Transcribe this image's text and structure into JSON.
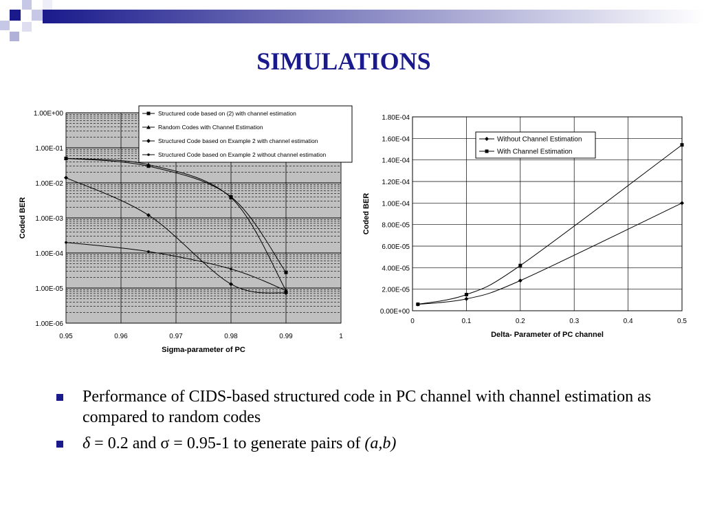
{
  "slide": {
    "title": "SIMULATIONS",
    "bullets": [
      {
        "text": "Performance of CIDS-based structured code in PC channel with channel estimation as compared to random codes"
      },
      {
        "p1": "δ",
        "p2": " = 0.2 and σ = 0.95-1 to generate pairs of ",
        "p3": "(a,b)"
      }
    ]
  },
  "colors": {
    "title": "#1a1a8c",
    "bullet": "#1a1a8c",
    "plot_bg": "#c0c0c0"
  },
  "chart_data": [
    {
      "type": "line",
      "xlabel": "Sigma-parameter of PC",
      "ylabel": "Coded BER",
      "y_scale": "log",
      "xlim": [
        0.95,
        1.0
      ],
      "ylim": [
        1e-06,
        1
      ],
      "x_ticks": [
        "0.95",
        "0.96",
        "0.97",
        "0.98",
        "0.99",
        "1"
      ],
      "y_ticks": [
        "1.00E+00",
        "1.00E-01",
        "1.00E-02",
        "1.00E-03",
        "1.00E-04",
        "1.00E-05",
        "1.00E-06"
      ],
      "grid": true,
      "legend_position": "top-right",
      "series": [
        {
          "name": "Structured code based on (2) with channel estimation",
          "marker": "square",
          "x": [
            0.95,
            0.965,
            0.98,
            0.99
          ],
          "y": [
            0.05,
            0.03,
            0.004,
            2.8e-05
          ]
        },
        {
          "name": "Random Codes with Channel Estimation",
          "marker": "triangle",
          "x": [
            0.95,
            0.965,
            0.98,
            0.99
          ],
          "y": [
            0.05,
            0.033,
            0.0038,
            8.5e-06
          ]
        },
        {
          "name": "Structured Code based on Example 2 with channel estimation",
          "marker": "diamond",
          "x": [
            0.95,
            0.965,
            0.98,
            0.99
          ],
          "y": [
            0.014,
            0.0012,
            1.3e-05,
            7.2e-06
          ]
        },
        {
          "name": "Structured Code based on Example 2 without channel estimation",
          "marker": "star",
          "x": [
            0.95,
            0.965,
            0.98,
            0.99
          ],
          "y": [
            0.0002,
            0.00011,
            3.5e-05,
            8.5e-06
          ]
        }
      ]
    },
    {
      "type": "line",
      "xlabel": "Delta- Parameter of PC channel",
      "ylabel": "Coded BER",
      "xlim": [
        0,
        0.5
      ],
      "ylim": [
        0,
        0.00018
      ],
      "x_ticks": [
        "0",
        "0.1",
        "0.2",
        "0.3",
        "0.4",
        "0.5"
      ],
      "y_ticks": [
        "0.00E+00",
        "2.00E-05",
        "4.00E-05",
        "6.00E-05",
        "8.00E-05",
        "1.00E-04",
        "1.20E-04",
        "1.40E-04",
        "1.60E-04",
        "1.80E-04"
      ],
      "grid": true,
      "legend_position": "top-center",
      "series": [
        {
          "name": "Without Channel Estimation",
          "marker": "diamond",
          "x": [
            0.01,
            0.1,
            0.2,
            0.5
          ],
          "y": [
            6e-06,
            1.1e-05,
            2.8e-05,
            0.0001
          ]
        },
        {
          "name": "With Channel Estimation",
          "marker": "square",
          "x": [
            0.01,
            0.1,
            0.2,
            0.5
          ],
          "y": [
            6e-06,
            1.5e-05,
            4.2e-05,
            0.000154
          ]
        }
      ]
    }
  ]
}
